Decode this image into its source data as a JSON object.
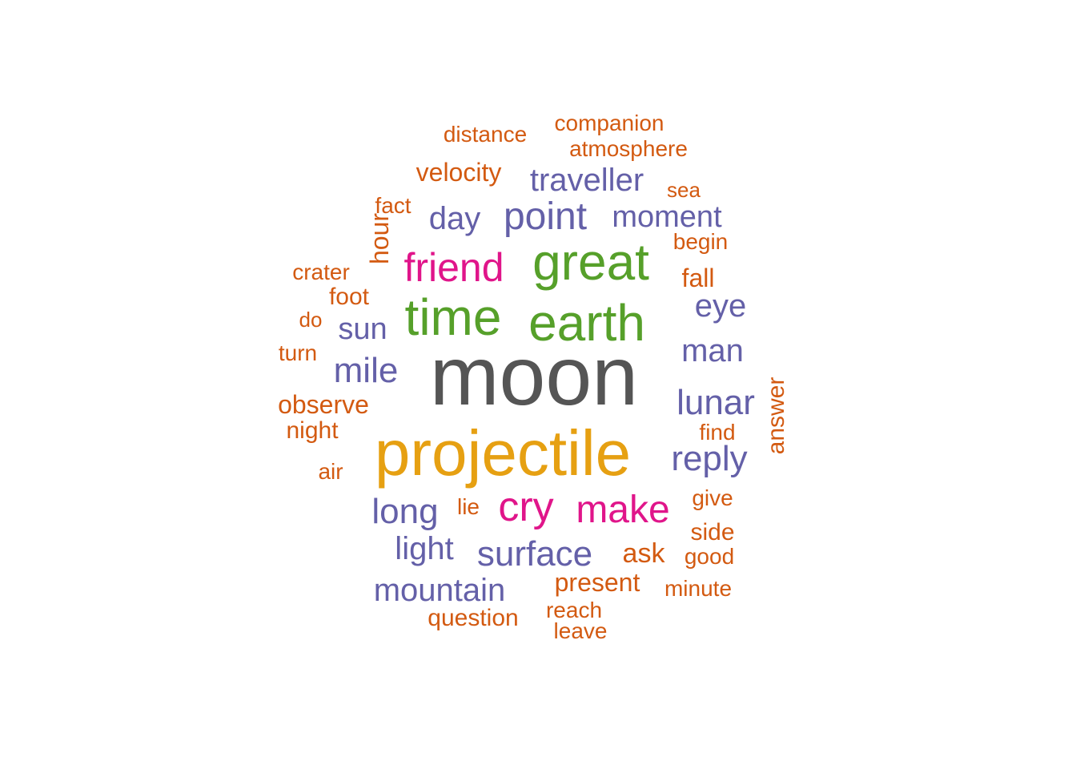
{
  "word_cloud": {
    "palette": {
      "tier1": "#555555",
      "tier2": "#E6A012",
      "tier3": "#56A02A",
      "tier4": "#E0158A",
      "tier5": "#6460A8",
      "tier6": "#D35A11"
    },
    "words": [
      {
        "text": "moon",
        "tier": "tier1",
        "vertical": false
      },
      {
        "text": "projectile",
        "tier": "tier2",
        "vertical": false
      },
      {
        "text": "earth",
        "tier": "tier3",
        "vertical": false
      },
      {
        "text": "great",
        "tier": "tier3",
        "vertical": false
      },
      {
        "text": "time",
        "tier": "tier3",
        "vertical": false
      },
      {
        "text": "cry",
        "tier": "tier4",
        "vertical": false
      },
      {
        "text": "friend",
        "tier": "tier4",
        "vertical": false
      },
      {
        "text": "make",
        "tier": "tier4",
        "vertical": false
      },
      {
        "text": "point",
        "tier": "tier5",
        "vertical": false
      },
      {
        "text": "lunar",
        "tier": "tier5",
        "vertical": false
      },
      {
        "text": "surface",
        "tier": "tier5",
        "vertical": false
      },
      {
        "text": "long",
        "tier": "tier5",
        "vertical": false
      },
      {
        "text": "mile",
        "tier": "tier5",
        "vertical": false
      },
      {
        "text": "reply",
        "tier": "tier5",
        "vertical": false
      },
      {
        "text": "traveller",
        "tier": "tier5",
        "vertical": false
      },
      {
        "text": "man",
        "tier": "tier5",
        "vertical": false
      },
      {
        "text": "mountain",
        "tier": "tier5",
        "vertical": false
      },
      {
        "text": "day",
        "tier": "tier5",
        "vertical": false
      },
      {
        "text": "moment",
        "tier": "tier5",
        "vertical": false
      },
      {
        "text": "eye",
        "tier": "tier5",
        "vertical": false
      },
      {
        "text": "light",
        "tier": "tier5",
        "vertical": false
      },
      {
        "text": "sun",
        "tier": "tier5",
        "vertical": false
      },
      {
        "text": "present",
        "tier": "tier6",
        "vertical": false
      },
      {
        "text": "ask",
        "tier": "tier6",
        "vertical": false
      },
      {
        "text": "observe",
        "tier": "tier6",
        "vertical": false
      },
      {
        "text": "velocity",
        "tier": "tier6",
        "vertical": false
      },
      {
        "text": "hour",
        "tier": "tier6",
        "vertical": true
      },
      {
        "text": "fall",
        "tier": "tier6",
        "vertical": false
      },
      {
        "text": "question",
        "tier": "tier6",
        "vertical": false
      },
      {
        "text": "answer",
        "tier": "tier6",
        "vertical": true
      },
      {
        "text": "distance",
        "tier": "tier6",
        "vertical": false
      },
      {
        "text": "companion",
        "tier": "tier6",
        "vertical": false
      },
      {
        "text": "atmosphere",
        "tier": "tier6",
        "vertical": false
      },
      {
        "text": "side",
        "tier": "tier6",
        "vertical": false
      },
      {
        "text": "night",
        "tier": "tier6",
        "vertical": false
      },
      {
        "text": "begin",
        "tier": "tier6",
        "vertical": false
      },
      {
        "text": "foot",
        "tier": "tier6",
        "vertical": false
      },
      {
        "text": "reach",
        "tier": "tier6",
        "vertical": false
      },
      {
        "text": "fact",
        "tier": "tier6",
        "vertical": false
      },
      {
        "text": "crater",
        "tier": "tier6",
        "vertical": false
      },
      {
        "text": "find",
        "tier": "tier6",
        "vertical": false
      },
      {
        "text": "give",
        "tier": "tier6",
        "vertical": false
      },
      {
        "text": "good",
        "tier": "tier6",
        "vertical": false
      },
      {
        "text": "minute",
        "tier": "tier6",
        "vertical": false
      },
      {
        "text": "leave",
        "tier": "tier6",
        "vertical": false
      },
      {
        "text": "sea",
        "tier": "tier6",
        "vertical": false
      },
      {
        "text": "turn",
        "tier": "tier6",
        "vertical": false
      },
      {
        "text": "air",
        "tier": "tier6",
        "vertical": false
      },
      {
        "text": "lie",
        "tier": "tier6",
        "vertical": false
      },
      {
        "text": "do",
        "tier": "tier6",
        "vertical": false
      }
    ]
  }
}
